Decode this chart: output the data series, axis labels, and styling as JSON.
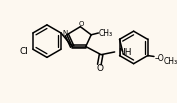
{
  "background_color": "#fdf8f0",
  "atoms": {
    "Cl": {
      "symbol": "Cl",
      "color": "#000000"
    },
    "O": {
      "symbol": "O",
      "color": "#000000"
    },
    "N": {
      "symbol": "N",
      "color": "#000000"
    },
    "C": {
      "symbol": "C",
      "color": "#000000"
    }
  },
  "title": ""
}
